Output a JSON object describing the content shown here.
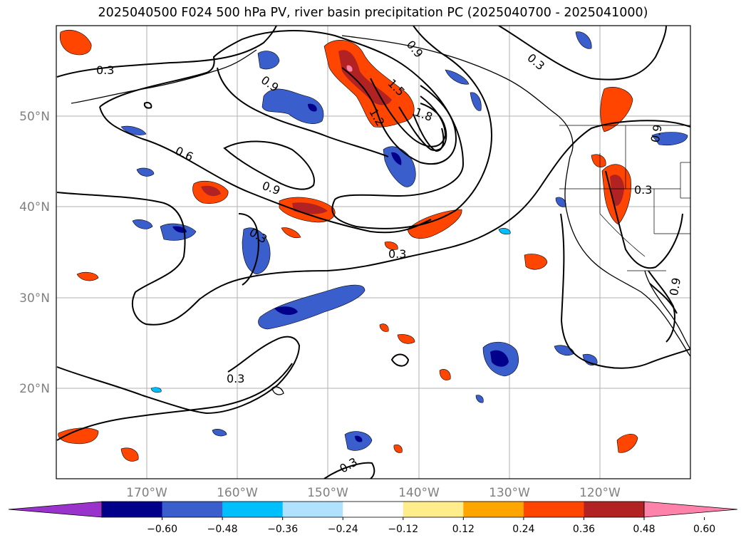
{
  "title": "2025040500 F024 500 hPa PV, river basin precipitation PC (2025040700 - 2025041000)",
  "lat_ticks": [
    "50°N",
    "40°N",
    "30°N",
    "20°N"
  ],
  "lon_ticks": [
    "170°W",
    "160°W",
    "150°W",
    "140°W",
    "130°W",
    "120°W"
  ],
  "colorbar": {
    "labels": [
      "−0.60",
      "−0.48",
      "−0.36",
      "−0.24",
      "−0.12",
      "0.12",
      "0.24",
      "0.36",
      "0.48",
      "0.60"
    ],
    "colors": [
      "#9933cc",
      "#00008b",
      "#3a5fcd",
      "#00bfff",
      "#b0e2ff",
      "#ffffff",
      "#ffec8b",
      "#ffa500",
      "#ff4500",
      "#b22222",
      "#ff82ab"
    ]
  },
  "contour_labels": [
    "0.3",
    "0.3",
    "0.3",
    "0.3",
    "0.3",
    "0.3",
    "0.3",
    "0.6",
    "0.9",
    "0.9",
    "0.9",
    "0.9",
    "1.2",
    "1.5",
    "1.8",
    "0.9"
  ],
  "extent": {
    "lon": [
      -180,
      -110
    ],
    "lat": [
      10,
      60
    ]
  }
}
